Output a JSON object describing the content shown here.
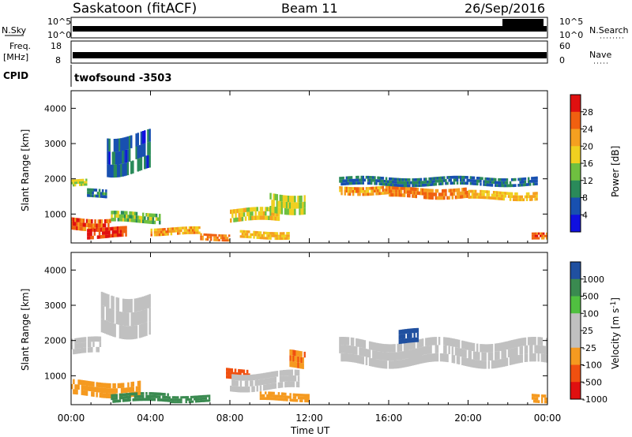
{
  "header": {
    "station": "Saskatoon (fitACF)",
    "beam": "Beam 11",
    "date": "26/Sep/2016"
  },
  "strips": {
    "nsky": {
      "label": "N.Sky",
      "ticks": [
        "10^5",
        "10^0"
      ],
      "right_label": "N.Search",
      "right_ticks": [
        "10^5",
        "10^0"
      ]
    },
    "freq": {
      "label_line1": "Freq.",
      "label_line2": "[MHz]",
      "ticks": [
        "18",
        "8"
      ],
      "right_label": "Nave",
      "right_ticks": [
        "60",
        "0"
      ]
    },
    "cpid": {
      "label": "CPID",
      "value": "twofsound -3503"
    }
  },
  "x_axis": {
    "label": "Time UT",
    "ticks": [
      "00:00",
      "04:00",
      "08:00",
      "12:00",
      "16:00",
      "20:00",
      "00:00"
    ]
  },
  "colors": {
    "power": [
      "#1010e0",
      "#1850b0",
      "#2a8a5a",
      "#6fc040",
      "#f0d020",
      "#f5a020",
      "#f06010",
      "#e01010"
    ],
    "velocity": [
      "#e01010",
      "#f05010",
      "#f59a20",
      "#c0c0c0",
      "#c0c0c0",
      "#50c040",
      "#3a8a50",
      "#2050a0"
    ]
  },
  "chart_data": [
    {
      "type": "heatmap",
      "title": "Power",
      "xlabel": "Time UT",
      "ylabel": "Slant Range [km]",
      "xlim": [
        0,
        24
      ],
      "ylim": [
        180,
        4500
      ],
      "y_ticks": [
        "1000",
        "2000",
        "3000",
        "4000"
      ],
      "colorbar": {
        "label": "Power [dB]",
        "ticks": [
          "4",
          "8",
          "12",
          "16",
          "20",
          "24",
          "28"
        ],
        "range": [
          0,
          32
        ]
      },
      "bands": [
        {
          "t0": 0.0,
          "t1": 0.8,
          "r0": 1780,
          "r1": 1980,
          "v": 16
        },
        {
          "t0": 0.8,
          "t1": 1.8,
          "r0": 1450,
          "r1": 1700,
          "v": 9
        },
        {
          "t0": 1.8,
          "t1": 4.0,
          "r0": 2200,
          "r1": 3300,
          "v": 7
        },
        {
          "t0": 0.0,
          "t1": 2.0,
          "r0": 550,
          "r1": 900,
          "v": 26
        },
        {
          "t0": 0.8,
          "t1": 2.8,
          "r0": 320,
          "r1": 620,
          "v": 28
        },
        {
          "t0": 2.0,
          "t1": 4.5,
          "r0": 750,
          "r1": 1050,
          "v": 14
        },
        {
          "t0": 4.0,
          "t1": 6.5,
          "r0": 400,
          "r1": 620,
          "v": 22
        },
        {
          "t0": 6.5,
          "t1": 8.0,
          "r0": 250,
          "r1": 450,
          "v": 24
        },
        {
          "t0": 8.0,
          "t1": 10.5,
          "r0": 780,
          "r1": 1150,
          "v": 18
        },
        {
          "t0": 10.0,
          "t1": 11.8,
          "r0": 1050,
          "r1": 1600,
          "v": 16
        },
        {
          "t0": 8.5,
          "t1": 11.0,
          "r0": 300,
          "r1": 520,
          "v": 20
        },
        {
          "t0": 13.5,
          "t1": 16.0,
          "r0": 1550,
          "r1": 1800,
          "v": 22
        },
        {
          "t0": 16.0,
          "t1": 20.0,
          "r0": 1450,
          "r1": 1750,
          "v": 24
        },
        {
          "t0": 20.0,
          "t1": 23.5,
          "r0": 1400,
          "r1": 1650,
          "v": 20
        },
        {
          "t0": 13.5,
          "t1": 23.5,
          "r0": 1800,
          "r1": 2050,
          "v": 8
        },
        {
          "t0": 23.2,
          "t1": 24.0,
          "r0": 250,
          "r1": 450,
          "v": 26
        }
      ]
    },
    {
      "type": "heatmap",
      "title": "Velocity",
      "xlabel": "Time UT",
      "ylabel": "Slant Range [km]",
      "xlim": [
        0,
        24
      ],
      "ylim": [
        180,
        4500
      ],
      "y_ticks": [
        "1000",
        "2000",
        "3000",
        "4000"
      ],
      "colorbar": {
        "label": "Velocity [m s^-1]",
        "ticks": [
          "1000",
          "500",
          "100",
          "25",
          "-25",
          "-100",
          "-500",
          "-1000"
        ]
      },
      "bands": [
        {
          "t0": 0.0,
          "t1": 1.5,
          "r0": 1600,
          "r1": 2050,
          "v": 0
        },
        {
          "t0": 1.5,
          "t1": 4.0,
          "r0": 2200,
          "r1": 3350,
          "v": 0
        },
        {
          "t0": 0.0,
          "t1": 3.5,
          "r0": 420,
          "r1": 850,
          "v": -150
        },
        {
          "t0": 2.0,
          "t1": 5.0,
          "r0": 250,
          "r1": 500,
          "v": 200
        },
        {
          "t0": 5.0,
          "t1": 7.0,
          "r0": 250,
          "r1": 450,
          "v": 300
        },
        {
          "t0": 7.8,
          "t1": 9.0,
          "r0": 900,
          "r1": 1200,
          "v": -600
        },
        {
          "t0": 8.0,
          "t1": 11.5,
          "r0": 600,
          "r1": 1100,
          "v": 0
        },
        {
          "t0": 11.0,
          "t1": 11.8,
          "r0": 1200,
          "r1": 1700,
          "v": -500
        },
        {
          "t0": 9.5,
          "t1": 12.0,
          "r0": 280,
          "r1": 520,
          "v": -150
        },
        {
          "t0": 13.5,
          "t1": 24.0,
          "r0": 1300,
          "r1": 2000,
          "v": 0
        },
        {
          "t0": 16.5,
          "t1": 17.5,
          "r0": 1900,
          "r1": 2300,
          "v": 700
        },
        {
          "t0": 23.2,
          "t1": 24.0,
          "r0": 250,
          "r1": 500,
          "v": -200
        }
      ]
    }
  ]
}
